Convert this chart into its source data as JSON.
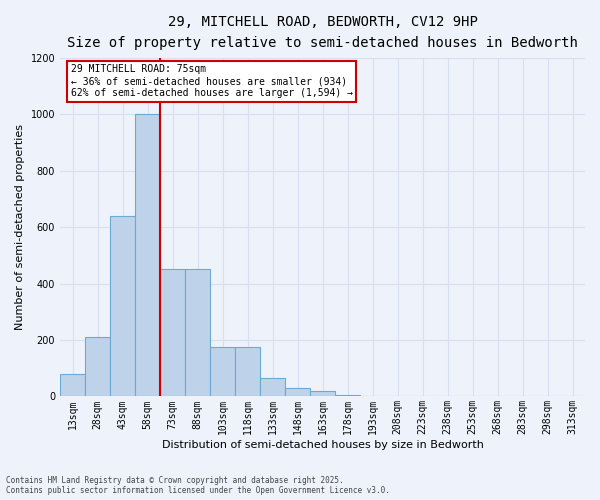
{
  "title_line1": "29, MITCHELL ROAD, BEDWORTH, CV12 9HP",
  "title_line2": "Size of property relative to semi-detached houses in Bedworth",
  "xlabel": "Distribution of semi-detached houses by size in Bedworth",
  "ylabel": "Number of semi-detached properties",
  "annotation_title": "29 MITCHELL ROAD: 75sqm",
  "annotation_line2": "← 36% of semi-detached houses are smaller (934)",
  "annotation_line3": "62% of semi-detached houses are larger (1,594) →",
  "footnote1": "Contains HM Land Registry data © Crown copyright and database right 2025.",
  "footnote2": "Contains public sector information licensed under the Open Government Licence v3.0.",
  "categories": [
    "13sqm",
    "28sqm",
    "43sqm",
    "58sqm",
    "73sqm",
    "88sqm",
    "103sqm",
    "118sqm",
    "133sqm",
    "148sqm",
    "163sqm",
    "178sqm",
    "193sqm",
    "208sqm",
    "223sqm",
    "238sqm",
    "253sqm",
    "268sqm",
    "283sqm",
    "298sqm",
    "313sqm"
  ],
  "values": [
    80,
    210,
    640,
    1000,
    450,
    450,
    175,
    175,
    65,
    30,
    20,
    5,
    2,
    2,
    1,
    1,
    0,
    0,
    0,
    0,
    0
  ],
  "bar_color": "#bed3ea",
  "bar_edge_color": "#6aaad4",
  "red_line_x": 3.5,
  "marker_color": "#cc0000",
  "ylim": [
    0,
    1200
  ],
  "yticks": [
    0,
    200,
    400,
    600,
    800,
    1000,
    1200
  ],
  "background_color": "#eef2fa",
  "grid_color": "#d8dff0",
  "annotation_box_color": "#ffffff",
  "annotation_box_edge": "#cc0000",
  "title_fontsize": 10,
  "subtitle_fontsize": 8,
  "tick_fontsize": 7,
  "ylabel_fontsize": 8,
  "xlabel_fontsize": 8
}
